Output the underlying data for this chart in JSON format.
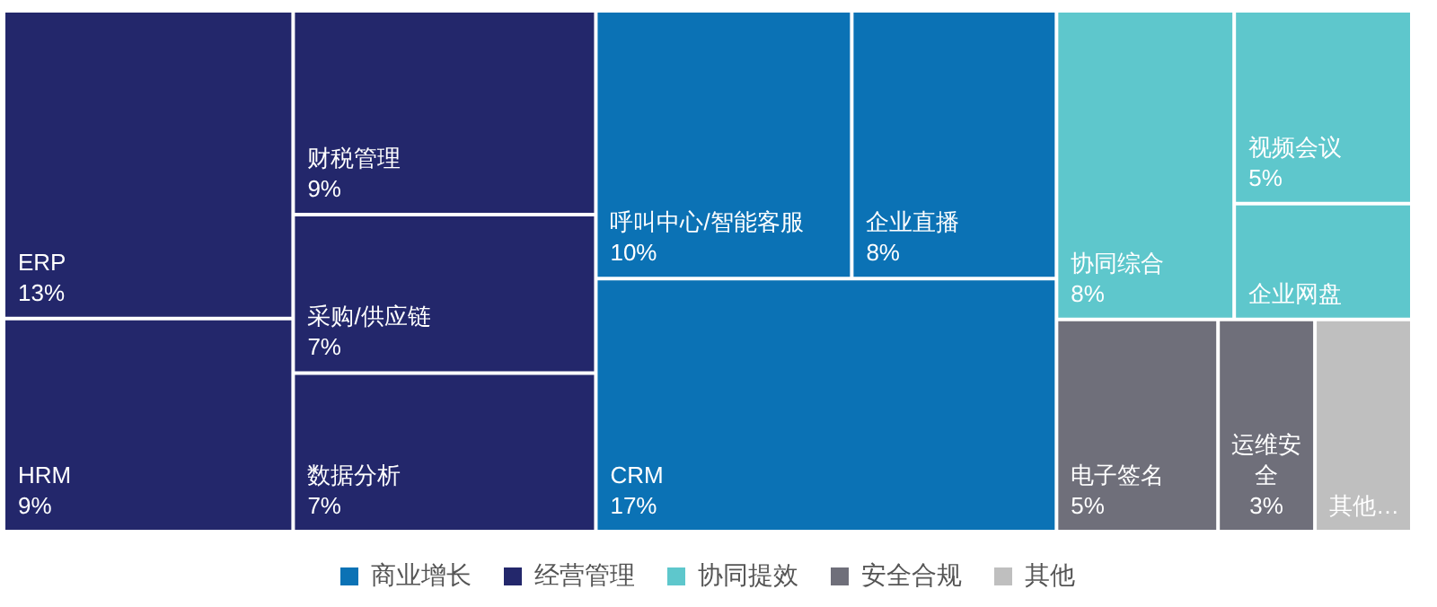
{
  "chart_data": {
    "type": "other",
    "categories": [
      "ERP",
      "HRM",
      "财税管理",
      "采购/供应链",
      "数据分析",
      "呼叫中心/智能客服",
      "企业直播",
      "CRM",
      "协同综合",
      "视频会议",
      "企业网盘",
      "电子签名",
      "运维安全",
      "其他…"
    ],
    "series": [
      {
        "name": "商业增长",
        "color": "#0b72b5",
        "values": [
          null,
          null,
          null,
          null,
          null,
          10,
          8,
          17,
          null,
          null,
          null,
          null,
          null,
          null
        ],
        "value_labels": [
          null,
          null,
          null,
          null,
          null,
          "10%",
          "8%",
          "17%",
          null,
          null,
          null,
          null,
          null,
          null
        ]
      },
      {
        "name": "经营管理",
        "color": "#23276b",
        "values": [
          13,
          9,
          9,
          7,
          7,
          null,
          null,
          null,
          null,
          null,
          null,
          null,
          null,
          null
        ],
        "value_labels": [
          "13%",
          "9%",
          "9%",
          "7%",
          "7%",
          null,
          null,
          null,
          null,
          null,
          null,
          null,
          null,
          null
        ]
      },
      {
        "name": "协同提效",
        "color": "#5ec7cc",
        "values": [
          null,
          null,
          null,
          null,
          null,
          null,
          null,
          null,
          8,
          5,
          null,
          null,
          null,
          null
        ],
        "value_labels": [
          null,
          null,
          null,
          null,
          null,
          null,
          null,
          null,
          "8%",
          "5%",
          null,
          null,
          null,
          null
        ]
      },
      {
        "name": "安全合规",
        "color": "#6f6f7a",
        "values": [
          null,
          null,
          null,
          null,
          null,
          null,
          null,
          null,
          null,
          null,
          null,
          5,
          3,
          null
        ],
        "value_labels": [
          null,
          null,
          null,
          null,
          null,
          null,
          null,
          null,
          null,
          null,
          null,
          "5%",
          "3%",
          null
        ]
      },
      {
        "name": "其他",
        "color": "#bfbfbf",
        "values": [
          null,
          null,
          null,
          null,
          null,
          null,
          null,
          null,
          null,
          null,
          null,
          null,
          null,
          null
        ],
        "value_labels": [
          null,
          null,
          null,
          null,
          null,
          null,
          null,
          null,
          null,
          null,
          null,
          null,
          null,
          null
        ]
      }
    ],
    "colors": [
      "#23276b",
      "#23276b",
      "#23276b",
      "#23276b",
      "#23276b",
      "#0b72b5",
      "#0b72b5",
      "#0b72b5",
      "#5ec7cc",
      "#5ec7cc",
      "#5ec7cc",
      "#6f6f7a",
      "#6f6f7a",
      "#bfbfbf"
    ],
    "legend": "bottom"
  }
}
